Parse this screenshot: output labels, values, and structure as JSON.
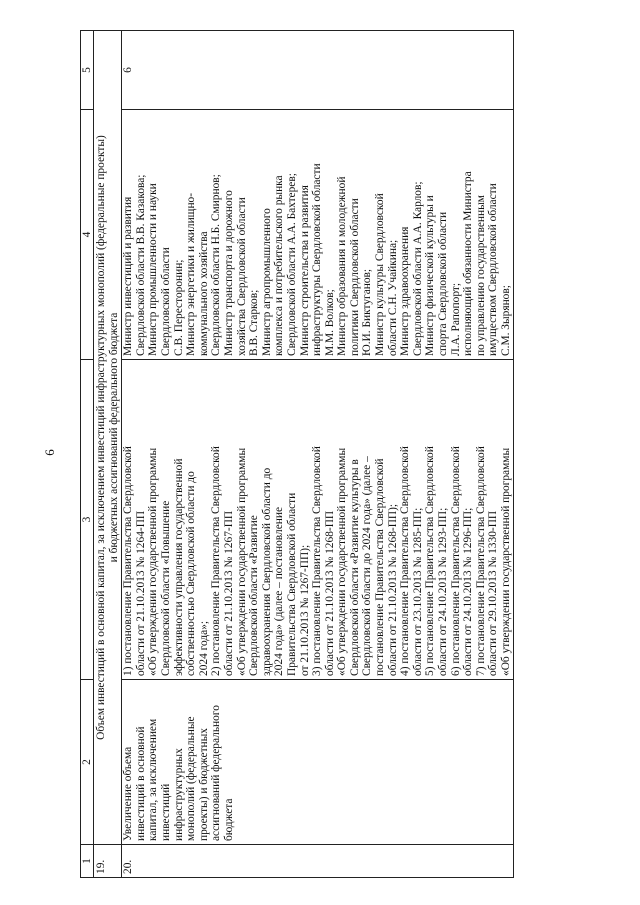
{
  "page_number": "6",
  "header": [
    "1",
    "2",
    "3",
    "4",
    "5"
  ],
  "row19": {
    "num": "19.",
    "title_lines": [
      "Объем инвестиций в основной капитал, за исключением инвестиций инфраструктурных монополий (федеральные проекты)",
      "и бюджетных ассигнований федерального бюджета"
    ]
  },
  "row20": {
    "num": "20.",
    "indicator_lines": [
      "Увеличение объема",
      "инвестиций в основной",
      "капитал, за исключением",
      "инвестиций",
      "инфраструктурных",
      "монополий (федеральные",
      "проекты) и бюджетных",
      "ассигнований федерального",
      "бюджета"
    ],
    "documents_lines": [
      "1) постановление Правительства Свердловской",
      "области от 21.10.2013 № 1264-ПП",
      "«Об утверждении государственной программы",
      "Свердловской области «Повышение",
      "эффективности управления государственной",
      "собственностью Свердловской области до",
      "2024 года»;",
      "2) постановление Правительства Свердловской",
      "области от 21.10.2013 № 1267-ПП",
      "«Об утверждении государственной программы",
      "Свердловской области «Развитие",
      "здравоохранения Свердловской области до",
      "2024 года» (далее – постановление",
      "Правительства Свердловской области",
      "от 21.10.2013 № 1267-ПП);",
      "3) постановление Правительства Свердловской",
      "области от 21.10.2013 № 1268-ПП",
      "«Об утверждении государственной программы",
      "Свердловской области «Развитие культуры в",
      "Свердловской области до 2024 года» (далее –",
      "постановление Правительства Свердловской",
      "области от 21.10.2013 № 1268-ПП);",
      "4) постановление Правительства Свердловской",
      "области от 23.10.2013 № 1285-ПП;",
      "5) постановление Правительства Свердловской",
      "области от 24.10.2013 № 1293-ПП;",
      "6) постановление Правительства Свердловской",
      "области от 24.10.2013 № 1296-ПП;",
      "7) постановление Правительства Свердловской",
      "области от 29.10.2013 № 1330-ПП",
      "«Об утверждении государственной программы"
    ],
    "responsible_lines": [
      "Министр инвестиций и развития",
      "Свердловской области В.В. Казакова;",
      "Министр промышленности и науки",
      "Свердловской области",
      "С.В. Пересторонин;",
      "Министр энергетики и жилищно-",
      "коммунального хозяйства",
      "Свердловской области Н.Б. Смирнов;",
      "Министр транспорта и дорожного",
      "хозяйства Свердловской области",
      "В.В. Старков;",
      "Министр агропромышленного",
      "комплекса и потребительского рынка",
      "Свердловской области А.А. Бахтерев;",
      "Министр строительства и развития",
      "инфраструктуры Свердловской области",
      "М.М. Волков;",
      "Министр образования и молодежной",
      "политики Свердловской области",
      "Ю.И. Биктуганов;",
      "Министр культуры Свердловской",
      "области С.Н. Учайкина;",
      "Министр здравоохранения",
      "Свердловской области А.А. Карлов;",
      "Министр физической культуры и",
      "спорта Свердловской области",
      "Л.А. Рапопорт;",
      "исполняющий обязанности Министра",
      "по управлению государственным",
      "имуществом Свердловской области",
      "С.М. Зырянов;"
    ],
    "col5": "6"
  }
}
